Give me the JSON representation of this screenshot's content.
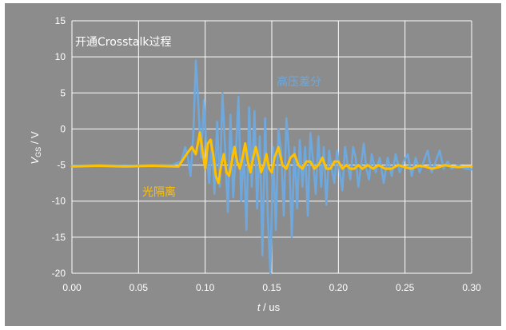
{
  "chart_data": {
    "type": "line",
    "title": "开通Crosstalk过程",
    "xlabel": "t / us",
    "xlabel_var": "t",
    "xlabel_unit": " / us",
    "ylabel_var": "V",
    "ylabel_sub": "GS",
    "ylabel_unit": " / V",
    "xlim": [
      0,
      0.3
    ],
    "ylim": [
      -20,
      15
    ],
    "xticks": [
      0.0,
      0.05,
      0.1,
      0.15,
      0.2,
      0.25,
      0.3
    ],
    "xtick_labels": [
      "0.00",
      "0.05",
      "0.10",
      "0.15",
      "0.20",
      "0.25",
      "0.30"
    ],
    "yticks": [
      -20,
      -15,
      -10,
      -5,
      0,
      5,
      10,
      15
    ],
    "ytick_labels": [
      "-20",
      "-15",
      "-10",
      "-5",
      "0",
      "5",
      "10",
      "15"
    ],
    "grid": true,
    "series": [
      {
        "name": "高压差分",
        "color": "#6fa8dc",
        "x": [
          0.0,
          0.02,
          0.04,
          0.06,
          0.075,
          0.082,
          0.085,
          0.087,
          0.089,
          0.091,
          0.093,
          0.095,
          0.097,
          0.099,
          0.101,
          0.103,
          0.105,
          0.107,
          0.109,
          0.111,
          0.113,
          0.115,
          0.117,
          0.119,
          0.121,
          0.123,
          0.125,
          0.127,
          0.129,
          0.131,
          0.133,
          0.135,
          0.137,
          0.139,
          0.141,
          0.143,
          0.145,
          0.147,
          0.149,
          0.151,
          0.153,
          0.155,
          0.157,
          0.159,
          0.161,
          0.163,
          0.165,
          0.167,
          0.169,
          0.171,
          0.173,
          0.175,
          0.177,
          0.179,
          0.181,
          0.183,
          0.185,
          0.187,
          0.189,
          0.191,
          0.193,
          0.195,
          0.197,
          0.199,
          0.201,
          0.203,
          0.205,
          0.207,
          0.209,
          0.211,
          0.213,
          0.215,
          0.217,
          0.219,
          0.221,
          0.223,
          0.225,
          0.228,
          0.231,
          0.234,
          0.237,
          0.24,
          0.243,
          0.246,
          0.249,
          0.252,
          0.255,
          0.258,
          0.261,
          0.264,
          0.267,
          0.27,
          0.273,
          0.276,
          0.279,
          0.282,
          0.285,
          0.29,
          0.295,
          0.3
        ],
        "y": [
          -5.1,
          -5.0,
          -5.1,
          -5.0,
          -5.0,
          -4.5,
          -2.5,
          -4.0,
          -6.5,
          -1.0,
          9.5,
          3.0,
          -4.0,
          4.0,
          -3.0,
          -7.5,
          -1.5,
          -9.0,
          1.0,
          -8.0,
          5.0,
          -3.0,
          -11.5,
          2.0,
          -9.5,
          -3.5,
          4.5,
          -10.0,
          -3.0,
          -14.0,
          3.0,
          -8.0,
          2.5,
          -11.0,
          -1.0,
          -17.5,
          1.5,
          -12.0,
          -20.0,
          -2.5,
          -14.0,
          0.0,
          -3.0,
          -12.0,
          1.5,
          -3.5,
          -15.0,
          -2.5,
          -11.0,
          -1.5,
          -8.0,
          -2.5,
          -12.0,
          -0.5,
          -4.5,
          -9.0,
          -1.0,
          -8.0,
          -2.5,
          -10.5,
          -3.0,
          -5.5,
          -7.5,
          -3.0,
          -6.0,
          -8.5,
          -2.5,
          -5.0,
          -7.0,
          -2.5,
          -4.0,
          -8.0,
          -5.0,
          -2.0,
          -5.5,
          -7.0,
          -3.5,
          -6.0,
          -4.0,
          -7.5,
          -4.0,
          -6.5,
          -3.5,
          -6.0,
          -4.5,
          -3.5,
          -6.5,
          -4.0,
          -6.0,
          -4.5,
          -3.0,
          -6.0,
          -4.5,
          -3.0,
          -5.5,
          -4.5,
          -5.5,
          -5.0,
          -5.5,
          -5.6
        ]
      },
      {
        "name": "光隔离",
        "color": "#ffc000",
        "x": [
          0.0,
          0.02,
          0.04,
          0.06,
          0.08,
          0.086,
          0.09,
          0.093,
          0.096,
          0.098,
          0.1,
          0.102,
          0.104,
          0.106,
          0.108,
          0.11,
          0.112,
          0.114,
          0.116,
          0.118,
          0.12,
          0.122,
          0.124,
          0.126,
          0.128,
          0.13,
          0.132,
          0.134,
          0.136,
          0.138,
          0.14,
          0.142,
          0.144,
          0.146,
          0.148,
          0.15,
          0.152,
          0.155,
          0.158,
          0.161,
          0.164,
          0.167,
          0.17,
          0.173,
          0.176,
          0.179,
          0.182,
          0.185,
          0.188,
          0.191,
          0.194,
          0.197,
          0.2,
          0.203,
          0.206,
          0.209,
          0.212,
          0.215,
          0.218,
          0.222,
          0.226,
          0.23,
          0.235,
          0.24,
          0.245,
          0.25,
          0.255,
          0.26,
          0.265,
          0.27,
          0.275,
          0.28,
          0.285,
          0.29,
          0.295,
          0.3
        ],
        "y": [
          -5.2,
          -5.1,
          -5.2,
          -5.1,
          -5.2,
          -3.5,
          -2.5,
          -3.5,
          -0.5,
          -3.0,
          -5.5,
          -2.0,
          -1.5,
          -3.5,
          -6.5,
          -7.5,
          -5.0,
          -3.5,
          -6.0,
          -6.5,
          -4.5,
          -2.5,
          -4.5,
          -5.5,
          -4.0,
          -2.0,
          -4.5,
          -6.0,
          -4.0,
          -2.5,
          -4.0,
          -6.0,
          -5.0,
          -3.5,
          -5.5,
          -6.0,
          -4.0,
          -2.5,
          -5.0,
          -5.5,
          -4.0,
          -3.5,
          -5.0,
          -5.5,
          -4.5,
          -4.5,
          -5.5,
          -5.0,
          -4.0,
          -5.5,
          -5.5,
          -4.5,
          -4.5,
          -5.5,
          -5.0,
          -5.5,
          -5.5,
          -5.0,
          -5.5,
          -5.0,
          -5.5,
          -5.0,
          -5.5,
          -5.5,
          -5.0,
          -5.3,
          -5.5,
          -5.1,
          -5.2,
          -5.5,
          -5.3,
          -5.0,
          -5.2,
          -5.3,
          -5.2,
          -5.2
        ]
      }
    ],
    "legend": "inline"
  }
}
